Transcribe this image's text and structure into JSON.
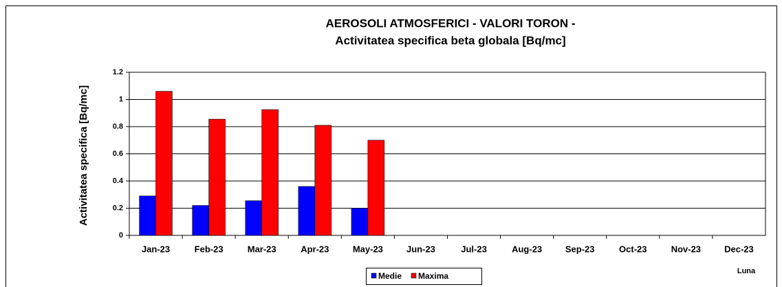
{
  "chart_data": {
    "type": "bar",
    "title": "AEROSOLI ATMOSFERICI  - VALORI TORON -",
    "subtitle": "Activitatea specifica beta globala [Bq/mc]",
    "y_label": "Activitatea specifica [Bq/mc]",
    "x_label": "Luna",
    "categories": [
      "Jan-23",
      "Feb-23",
      "Mar-23",
      "Apr-23",
      "May-23",
      "Jun-23",
      "Jul-23",
      "Aug-23",
      "Sep-23",
      "Oct-23",
      "Nov-23",
      "Dec-23"
    ],
    "series": [
      {
        "name": "Medie",
        "color": "#0000ff",
        "values": [
          0.29,
          0.22,
          0.255,
          0.36,
          0.2,
          null,
          null,
          null,
          null,
          null,
          null,
          null
        ]
      },
      {
        "name": "Maxima",
        "color": "#ff0000",
        "values": [
          1.06,
          0.855,
          0.925,
          0.81,
          0.7,
          null,
          null,
          null,
          null,
          null,
          null,
          null
        ]
      }
    ],
    "ylim": [
      0,
      1.2
    ],
    "yticks": [
      0,
      0.2,
      0.4,
      0.6,
      0.8,
      1,
      1.2
    ],
    "grid": true,
    "legend": "bottom"
  }
}
